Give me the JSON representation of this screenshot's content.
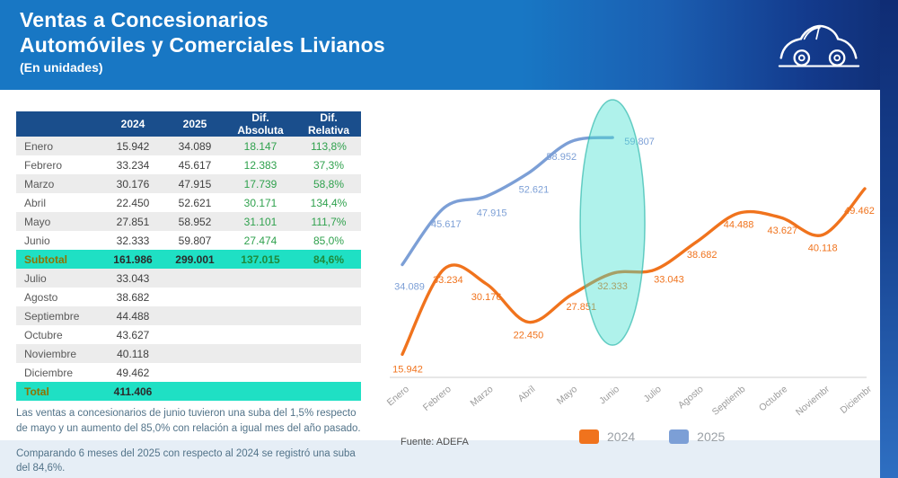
{
  "header": {
    "title_line1": "Ventas a Concesionarios",
    "title_line2": "Automóviles y Comerciales Livianos",
    "subtitle": "(En unidades)",
    "car_icon": "car-icon"
  },
  "table": {
    "columns": [
      "",
      "2024",
      "2025",
      "Dif. Absoluta",
      "Dif. Relativa"
    ],
    "rows": [
      {
        "label": "Enero",
        "y2024": "15.942",
        "y2025": "34.089",
        "dif_abs": "18.147",
        "dif_rel": "113,8%",
        "kind": "month"
      },
      {
        "label": "Febrero",
        "y2024": "33.234",
        "y2025": "45.617",
        "dif_abs": "12.383",
        "dif_rel": "37,3%",
        "kind": "month"
      },
      {
        "label": "Marzo",
        "y2024": "30.176",
        "y2025": "47.915",
        "dif_abs": "17.739",
        "dif_rel": "58,8%",
        "kind": "month"
      },
      {
        "label": "Abril",
        "y2024": "22.450",
        "y2025": "52.621",
        "dif_abs": "30.171",
        "dif_rel": "134,4%",
        "kind": "month"
      },
      {
        "label": "Mayo",
        "y2024": "27.851",
        "y2025": "58.952",
        "dif_abs": "31.101",
        "dif_rel": "111,7%",
        "kind": "month"
      },
      {
        "label": "Junio",
        "y2024": "32.333",
        "y2025": "59.807",
        "dif_abs": "27.474",
        "dif_rel": "85,0%",
        "kind": "month"
      },
      {
        "label": "Subtotal",
        "y2024": "161.986",
        "y2025": "299.001",
        "dif_abs": "137.015",
        "dif_rel": "84,6%",
        "kind": "total"
      },
      {
        "label": "Julio",
        "y2024": "33.043",
        "y2025": "",
        "dif_abs": "",
        "dif_rel": "",
        "kind": "month"
      },
      {
        "label": "Agosto",
        "y2024": "38.682",
        "y2025": "",
        "dif_abs": "",
        "dif_rel": "",
        "kind": "month"
      },
      {
        "label": "Septiembre",
        "y2024": "44.488",
        "y2025": "",
        "dif_abs": "",
        "dif_rel": "",
        "kind": "month"
      },
      {
        "label": "Octubre",
        "y2024": "43.627",
        "y2025": "",
        "dif_abs": "",
        "dif_rel": "",
        "kind": "month"
      },
      {
        "label": "Noviembre",
        "y2024": "40.118",
        "y2025": "",
        "dif_abs": "",
        "dif_rel": "",
        "kind": "month"
      },
      {
        "label": "Diciembre",
        "y2024": "49.462",
        "y2025": "",
        "dif_abs": "",
        "dif_rel": "",
        "kind": "month"
      },
      {
        "label": "Total",
        "y2024": "411.406",
        "y2025": "",
        "dif_abs": "",
        "dif_rel": "",
        "kind": "total"
      }
    ]
  },
  "notes": {
    "note1": "Las ventas a concesionarios de junio tuvieron una suba del 1,5% respecto de mayo y un aumento del 85,0% con relación a igual mes del año pasado.",
    "note2": "Comparando 6 meses del 2025 con respecto al 2024 se registró una suba del 84,6%."
  },
  "chart_data": {
    "type": "line",
    "x": [
      "Enero",
      "Febrero",
      "Marzo",
      "Abril",
      "Mayo",
      "Junio",
      "Julio",
      "Agosto",
      "Septiemb",
      "Octubre",
      "Noviembr",
      "Diciembr"
    ],
    "series": [
      {
        "name": "2024",
        "color": "#F0731D",
        "values": [
          15942,
          33234,
          30176,
          22450,
          27851,
          32333,
          33043,
          38682,
          44488,
          43627,
          40118,
          49462
        ]
      },
      {
        "name": "2025",
        "color": "#7C9FD6",
        "values": [
          34089,
          45617,
          47915,
          52621,
          58952,
          59807
        ]
      }
    ],
    "title": "",
    "xlabel": "",
    "ylabel": "",
    "ylim": [
      12000,
      64000
    ],
    "grid": false,
    "legend_position": "bottom",
    "highlight": {
      "month": "Junio",
      "color": "#40E0D0"
    },
    "source": "Fuente: ADEFA"
  }
}
